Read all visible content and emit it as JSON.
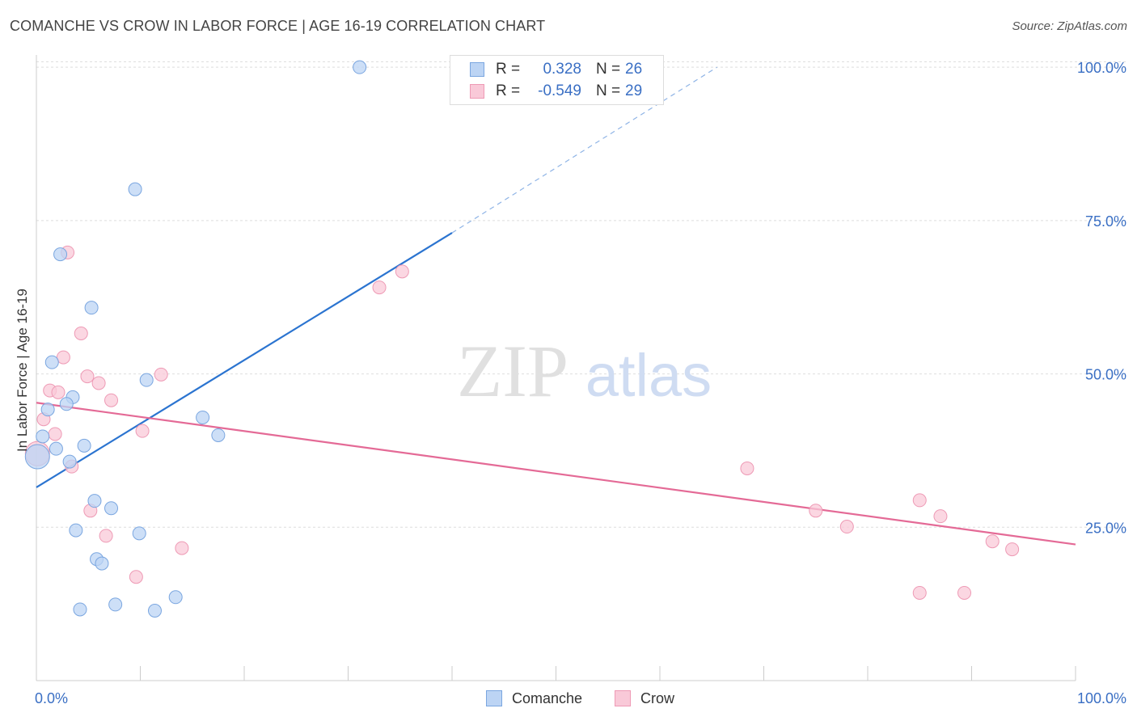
{
  "header": {
    "title": "COMANCHE VS CROW IN LABOR FORCE | AGE 16-19 CORRELATION CHART",
    "source": "Source: ZipAtlas.com"
  },
  "colors": {
    "blue_fill": "#bcd4f4",
    "blue_stroke": "#7aa6e0",
    "blue_line": "#2b74d0",
    "pink_fill": "#f9c9d8",
    "pink_stroke": "#ee9ab5",
    "pink_line": "#e46a96",
    "axis_text": "#3a6fc4"
  },
  "legend": {
    "comanche": {
      "r_label": "R =",
      "r_value": "0.328",
      "n_label": "N =",
      "n_value": "26"
    },
    "crow": {
      "r_label": "R =",
      "r_value": "-0.549",
      "n_label": "N =",
      "n_value": "29"
    }
  },
  "watermark": {
    "zip": "ZIP",
    "atlas": "atlas"
  },
  "chart_data": {
    "type": "scatter",
    "title": "COMANCHE VS CROW IN LABOR FORCE | AGE 16-19 CORRELATION CHART",
    "xlabel": "",
    "ylabel": "In Labor Force | Age 16-19",
    "xlim": [
      0,
      100
    ],
    "ylim": [
      0,
      102
    ],
    "x_tick_labels": [
      "0.0%",
      "100.0%"
    ],
    "y_ticks": [
      25,
      50,
      75,
      100
    ],
    "y_tick_labels": [
      "25.0%",
      "50.0%",
      "75.0%",
      "100.0%"
    ],
    "grid": true,
    "legend_position": "bottom-center",
    "series": [
      {
        "name": "Comanche",
        "r": 0.328,
        "n": 26,
        "points": [
          {
            "x": 31.1,
            "y": 100.0,
            "s": 8
          },
          {
            "x": 9.5,
            "y": 80.1,
            "s": 8
          },
          {
            "x": 2.3,
            "y": 69.5,
            "s": 8
          },
          {
            "x": 5.3,
            "y": 60.8,
            "s": 8
          },
          {
            "x": 1.5,
            "y": 51.9,
            "s": 8
          },
          {
            "x": 10.6,
            "y": 49.0,
            "s": 8
          },
          {
            "x": 3.5,
            "y": 46.2,
            "s": 8
          },
          {
            "x": 2.9,
            "y": 45.1,
            "s": 8
          },
          {
            "x": 1.1,
            "y": 44.2,
            "s": 8
          },
          {
            "x": 16.0,
            "y": 42.9,
            "s": 8
          },
          {
            "x": 0.6,
            "y": 39.8,
            "s": 8
          },
          {
            "x": 17.5,
            "y": 40.0,
            "s": 8
          },
          {
            "x": 4.6,
            "y": 38.3,
            "s": 8
          },
          {
            "x": 1.9,
            "y": 37.8,
            "s": 8
          },
          {
            "x": 0.1,
            "y": 36.5,
            "s": 15
          },
          {
            "x": 3.2,
            "y": 35.7,
            "s": 8
          },
          {
            "x": 5.6,
            "y": 29.3,
            "s": 8
          },
          {
            "x": 7.2,
            "y": 28.1,
            "s": 8
          },
          {
            "x": 3.8,
            "y": 24.5,
            "s": 8
          },
          {
            "x": 9.9,
            "y": 24.0,
            "s": 8
          },
          {
            "x": 5.8,
            "y": 19.8,
            "s": 8
          },
          {
            "x": 6.3,
            "y": 19.1,
            "s": 8
          },
          {
            "x": 13.4,
            "y": 13.6,
            "s": 8
          },
          {
            "x": 7.6,
            "y": 12.4,
            "s": 8
          },
          {
            "x": 4.2,
            "y": 11.6,
            "s": 8
          },
          {
            "x": 11.4,
            "y": 11.4,
            "s": 8
          }
        ],
        "trend": {
          "x": [
            0,
            40
          ],
          "y": [
            31.5,
            73.0
          ]
        },
        "trend_extension": {
          "x": [
            40,
            65.5
          ],
          "y": [
            73.0,
            100.0
          ]
        }
      },
      {
        "name": "Crow",
        "r": -0.549,
        "n": 29,
        "points": [
          {
            "x": 3.0,
            "y": 69.8,
            "s": 8
          },
          {
            "x": 33.0,
            "y": 64.1,
            "s": 8
          },
          {
            "x": 35.2,
            "y": 66.7,
            "s": 8
          },
          {
            "x": 4.3,
            "y": 56.6,
            "s": 8
          },
          {
            "x": 2.6,
            "y": 52.7,
            "s": 8
          },
          {
            "x": 12.0,
            "y": 49.9,
            "s": 8
          },
          {
            "x": 4.9,
            "y": 49.6,
            "s": 8
          },
          {
            "x": 6.0,
            "y": 48.5,
            "s": 8
          },
          {
            "x": 1.3,
            "y": 47.3,
            "s": 8
          },
          {
            "x": 2.1,
            "y": 47.0,
            "s": 8
          },
          {
            "x": 7.2,
            "y": 45.7,
            "s": 8
          },
          {
            "x": 0.7,
            "y": 42.6,
            "s": 8
          },
          {
            "x": 10.2,
            "y": 40.7,
            "s": 8
          },
          {
            "x": 1.8,
            "y": 40.2,
            "s": 8
          },
          {
            "x": 0.1,
            "y": 37.0,
            "s": 15
          },
          {
            "x": 3.4,
            "y": 34.9,
            "s": 8
          },
          {
            "x": 68.4,
            "y": 34.6,
            "s": 8
          },
          {
            "x": 5.2,
            "y": 27.7,
            "s": 8
          },
          {
            "x": 75.0,
            "y": 27.7,
            "s": 8
          },
          {
            "x": 85.0,
            "y": 29.4,
            "s": 8
          },
          {
            "x": 87.0,
            "y": 26.8,
            "s": 8
          },
          {
            "x": 78.0,
            "y": 25.1,
            "s": 8
          },
          {
            "x": 6.7,
            "y": 23.6,
            "s": 8
          },
          {
            "x": 92.0,
            "y": 22.7,
            "s": 8
          },
          {
            "x": 14.0,
            "y": 21.6,
            "s": 8
          },
          {
            "x": 93.9,
            "y": 21.4,
            "s": 8
          },
          {
            "x": 9.6,
            "y": 16.9,
            "s": 8
          },
          {
            "x": 85.0,
            "y": 14.3,
            "s": 8
          },
          {
            "x": 89.3,
            "y": 14.3,
            "s": 8
          }
        ],
        "trend": {
          "x": [
            0,
            100
          ],
          "y": [
            45.3,
            22.2
          ]
        }
      }
    ]
  }
}
